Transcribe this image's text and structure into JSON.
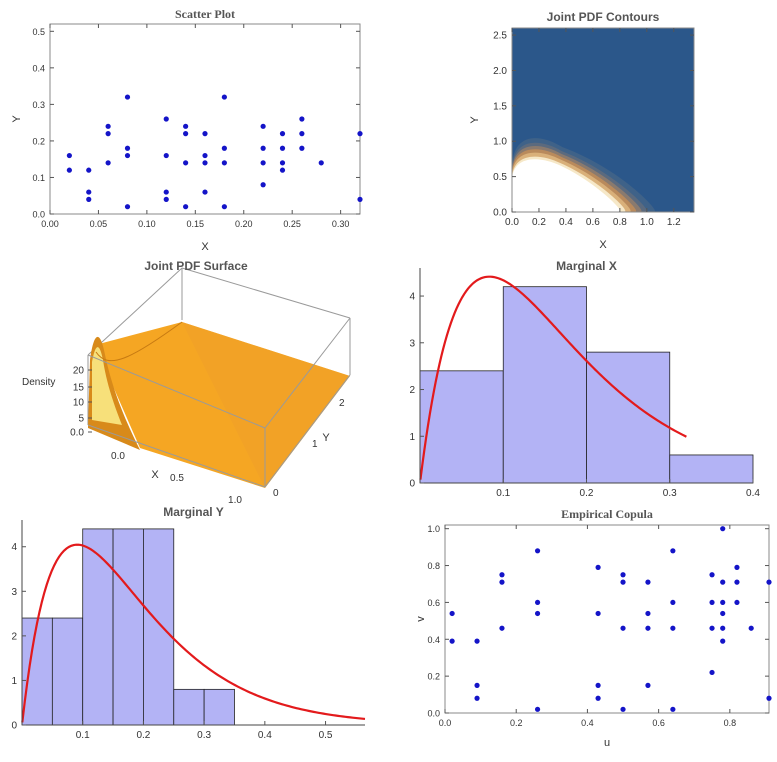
{
  "chart_data": [
    {
      "id": "scatter",
      "type": "scatter",
      "title": "Scatter Plot",
      "xlabel": "X",
      "ylabel": "Y",
      "xlim": [
        0,
        0.32
      ],
      "ylim": [
        0,
        0.52
      ],
      "xticks": [
        "0.00",
        "0.05",
        "0.10",
        "0.15",
        "0.20",
        "0.25",
        "0.30"
      ],
      "xtick_values": [
        0,
        0.05,
        0.1,
        0.15,
        0.2,
        0.25,
        0.3
      ],
      "yticks": [
        "0.0",
        "0.1",
        "0.2",
        "0.3",
        "0.4",
        "0.5"
      ],
      "ytick_values": [
        0,
        0.1,
        0.2,
        0.3,
        0.4,
        0.5
      ],
      "points": [
        [
          0.02,
          0.16
        ],
        [
          0.02,
          0.12
        ],
        [
          0.04,
          0.12
        ],
        [
          0.04,
          0.06
        ],
        [
          0.04,
          0.04
        ],
        [
          0.06,
          0.24
        ],
        [
          0.06,
          0.22
        ],
        [
          0.06,
          0.14
        ],
        [
          0.08,
          0.32
        ],
        [
          0.08,
          0.18
        ],
        [
          0.08,
          0.16
        ],
        [
          0.08,
          0.02
        ],
        [
          0.12,
          0.26
        ],
        [
          0.12,
          0.16
        ],
        [
          0.12,
          0.06
        ],
        [
          0.12,
          0.04
        ],
        [
          0.14,
          0.24
        ],
        [
          0.14,
          0.22
        ],
        [
          0.14,
          0.14
        ],
        [
          0.14,
          0.02
        ],
        [
          0.16,
          0.22
        ],
        [
          0.16,
          0.16
        ],
        [
          0.16,
          0.14
        ],
        [
          0.16,
          0.06
        ],
        [
          0.18,
          0.32
        ],
        [
          0.18,
          0.18
        ],
        [
          0.18,
          0.14
        ],
        [
          0.18,
          0.02
        ],
        [
          0.22,
          0.24
        ],
        [
          0.22,
          0.18
        ],
        [
          0.22,
          0.14
        ],
        [
          0.22,
          0.08
        ],
        [
          0.24,
          0.22
        ],
        [
          0.24,
          0.18
        ],
        [
          0.24,
          0.14
        ],
        [
          0.24,
          0.12
        ],
        [
          0.26,
          0.26
        ],
        [
          0.26,
          0.22
        ],
        [
          0.26,
          0.18
        ],
        [
          0.28,
          0.14
        ],
        [
          0.32,
          0.22
        ],
        [
          0.32,
          0.04
        ]
      ]
    },
    {
      "id": "contour",
      "type": "contour",
      "title": "Joint PDF Contours",
      "xlabel": "X",
      "ylabel": "Y",
      "xlim": [
        0,
        1.35
      ],
      "ylim": [
        0,
        2.6
      ],
      "xticks": [
        "0.0",
        "0.2",
        "0.4",
        "0.6",
        "0.8",
        "1.0",
        "1.2"
      ],
      "xtick_values": [
        0,
        0.2,
        0.4,
        0.6,
        0.8,
        1.0,
        1.2
      ],
      "yticks": [
        "0.0",
        "0.5",
        "1.0",
        "1.5",
        "2.0",
        "2.5"
      ],
      "ytick_values": [
        0,
        0.5,
        1.0,
        1.5,
        2.0,
        2.5
      ],
      "background_color": "#2b578a",
      "high_density_color": "#ffffff",
      "rings": [
        {
          "tip": 0.8,
          "top": 0.8,
          "color": "#ffffff"
        },
        {
          "tip": 0.84,
          "top": 0.84,
          "color": "#f6e8c8"
        },
        {
          "tip": 0.88,
          "top": 0.9,
          "color": "#d9b07a"
        },
        {
          "tip": 0.92,
          "top": 0.95,
          "color": "#b98a5c"
        },
        {
          "tip": 0.96,
          "top": 1.0,
          "color": "#8a7a6e"
        },
        {
          "tip": 1.0,
          "top": 1.05,
          "color": "#5b6a7e"
        },
        {
          "tip": 1.06,
          "top": 1.12,
          "color": "#3f6288"
        }
      ]
    },
    {
      "id": "surface",
      "type": "surface3d",
      "title": "Joint PDF Surface",
      "xlabel": "X",
      "ylabel": "Y",
      "zlabel": "Density",
      "xticks": [
        "0.0",
        "0.5",
        "1.0"
      ],
      "yticks": [
        "0",
        "1",
        "2"
      ],
      "zticks": [
        "0.0",
        "5",
        "10",
        "15",
        "20"
      ],
      "zlim": [
        0,
        20
      ],
      "surface_color": "#f5a623",
      "peak": 20
    },
    {
      "id": "marginal_x",
      "type": "bar",
      "title": "Marginal X",
      "xlim": [
        0,
        0.4
      ],
      "ylim": [
        0,
        4.6
      ],
      "xticks": [
        "0.1",
        "0.2",
        "0.3",
        "0.4"
      ],
      "xtick_values": [
        0.1,
        0.2,
        0.3,
        0.4
      ],
      "yticks": [
        "0",
        "1",
        "2",
        "3",
        "4"
      ],
      "ytick_values": [
        0,
        1,
        2,
        3,
        4
      ],
      "bins": [
        {
          "from": 0.0,
          "to": 0.1,
          "value": 2.4
        },
        {
          "from": 0.1,
          "to": 0.2,
          "value": 4.2
        },
        {
          "from": 0.2,
          "to": 0.3,
          "value": 2.8
        },
        {
          "from": 0.3,
          "to": 0.4,
          "value": 0.6
        }
      ],
      "curve": {
        "shape": 2.0,
        "rate": 12.0,
        "x_end": 0.32,
        "color": "#e31a1c"
      },
      "bar_color": "#b3b3f5"
    },
    {
      "id": "marginal_y",
      "type": "bar",
      "title": "Marginal Y",
      "xlim": [
        0,
        0.565
      ],
      "ylim": [
        0,
        4.6
      ],
      "xticks": [
        "0.1",
        "0.2",
        "0.3",
        "0.4",
        "0.5"
      ],
      "xtick_values": [
        0.1,
        0.2,
        0.3,
        0.4,
        0.5
      ],
      "yticks": [
        "0",
        "1",
        "2",
        "3",
        "4"
      ],
      "ytick_values": [
        0,
        1,
        2,
        3,
        4
      ],
      "bins": [
        {
          "from": 0.0,
          "to": 0.05,
          "value": 2.4
        },
        {
          "from": 0.05,
          "to": 0.1,
          "value": 2.4
        },
        {
          "from": 0.1,
          "to": 0.15,
          "value": 4.4
        },
        {
          "from": 0.15,
          "to": 0.2,
          "value": 4.4
        },
        {
          "from": 0.2,
          "to": 0.25,
          "value": 4.4
        },
        {
          "from": 0.25,
          "to": 0.3,
          "value": 0.8
        },
        {
          "from": 0.3,
          "to": 0.35,
          "value": 0.8
        }
      ],
      "curve": {
        "shape": 2.0,
        "rate": 11.0,
        "x_end": 0.565,
        "color": "#e31a1c"
      },
      "bar_color": "#b3b3f5"
    },
    {
      "id": "copula",
      "type": "scatter",
      "title": "Empirical Copula",
      "xlabel": "u",
      "ylabel": "v",
      "xlim": [
        0,
        0.91
      ],
      "ylim": [
        0,
        1.02
      ],
      "xticks": [
        "0.0",
        "0.2",
        "0.4",
        "0.6",
        "0.8"
      ],
      "xtick_values": [
        0,
        0.2,
        0.4,
        0.6,
        0.8
      ],
      "yticks": [
        "0.0",
        "0.2",
        "0.4",
        "0.6",
        "0.8",
        "1.0"
      ],
      "ytick_values": [
        0,
        0.2,
        0.4,
        0.6,
        0.8,
        1.0
      ],
      "points": [
        [
          0.02,
          0.54
        ],
        [
          0.02,
          0.39
        ],
        [
          0.09,
          0.39
        ],
        [
          0.09,
          0.15
        ],
        [
          0.09,
          0.08
        ],
        [
          0.16,
          0.75
        ],
        [
          0.16,
          0.71
        ],
        [
          0.16,
          0.46
        ],
        [
          0.26,
          0.88
        ],
        [
          0.26,
          0.6
        ],
        [
          0.26,
          0.54
        ],
        [
          0.26,
          0.02
        ],
        [
          0.43,
          0.79
        ],
        [
          0.43,
          0.54
        ],
        [
          0.43,
          0.15
        ],
        [
          0.43,
          0.08
        ],
        [
          0.5,
          0.75
        ],
        [
          0.5,
          0.71
        ],
        [
          0.5,
          0.46
        ],
        [
          0.5,
          0.02
        ],
        [
          0.57,
          0.71
        ],
        [
          0.57,
          0.54
        ],
        [
          0.57,
          0.46
        ],
        [
          0.57,
          0.15
        ],
        [
          0.64,
          0.88
        ],
        [
          0.64,
          0.6
        ],
        [
          0.64,
          0.46
        ],
        [
          0.64,
          0.02
        ],
        [
          0.75,
          0.75
        ],
        [
          0.75,
          0.6
        ],
        [
          0.75,
          0.46
        ],
        [
          0.75,
          0.22
        ],
        [
          0.78,
          1.0
        ],
        [
          0.78,
          0.71
        ],
        [
          0.78,
          0.6
        ],
        [
          0.78,
          0.54
        ],
        [
          0.78,
          0.46
        ],
        [
          0.78,
          0.39
        ],
        [
          0.82,
          0.79
        ],
        [
          0.82,
          0.71
        ],
        [
          0.82,
          0.6
        ],
        [
          0.86,
          0.46
        ],
        [
          0.91,
          0.71
        ],
        [
          0.91,
          0.08
        ]
      ]
    }
  ]
}
